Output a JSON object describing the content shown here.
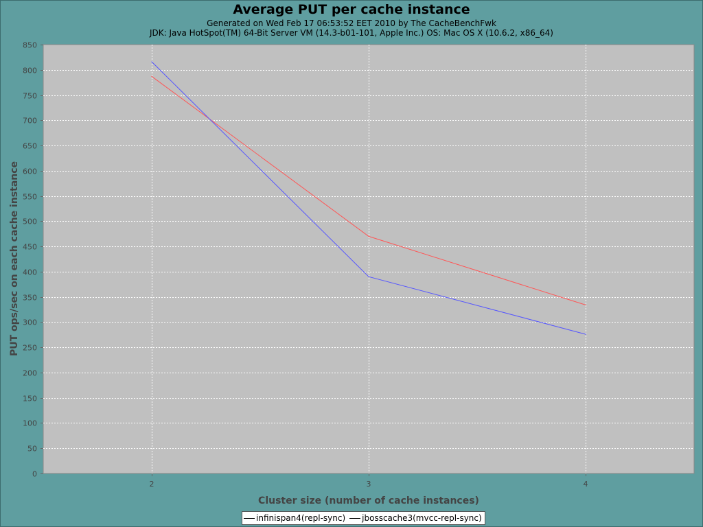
{
  "chart_data": {
    "type": "line",
    "title": "Average PUT per cache instance",
    "subtitle_lines": [
      "Generated on Wed Feb 17 06:53:52 EET 2010 by The CacheBenchFwk",
      "JDK: Java HotSpot(TM) 64-Bit Server VM (14.3-b01-101, Apple Inc.) OS: Mac OS X (10.6.2, x86_64)"
    ],
    "xlabel": "Cluster size (number of cache instances)",
    "ylabel": "PUT ops/sec on each cache instance",
    "categories": [
      "2",
      "3",
      "4"
    ],
    "ylim": [
      0,
      850
    ],
    "yticks": [
      0,
      50,
      100,
      150,
      200,
      250,
      300,
      350,
      400,
      450,
      500,
      550,
      600,
      650,
      700,
      750,
      800,
      850
    ],
    "grid": true,
    "legend_position": "bottom",
    "series": [
      {
        "name": "infinispan4(repl-sync)",
        "values": [
          787,
          470,
          334
        ],
        "color": "#ff5555"
      },
      {
        "name": "jbosscache3(mvcc-repl-sync)",
        "values": [
          816,
          390,
          276
        ],
        "color": "#5555ff"
      }
    ]
  },
  "colors": {
    "background": "#5f9ea0",
    "plot_background": "#c0c0c0",
    "gridline": "#ffffff"
  }
}
